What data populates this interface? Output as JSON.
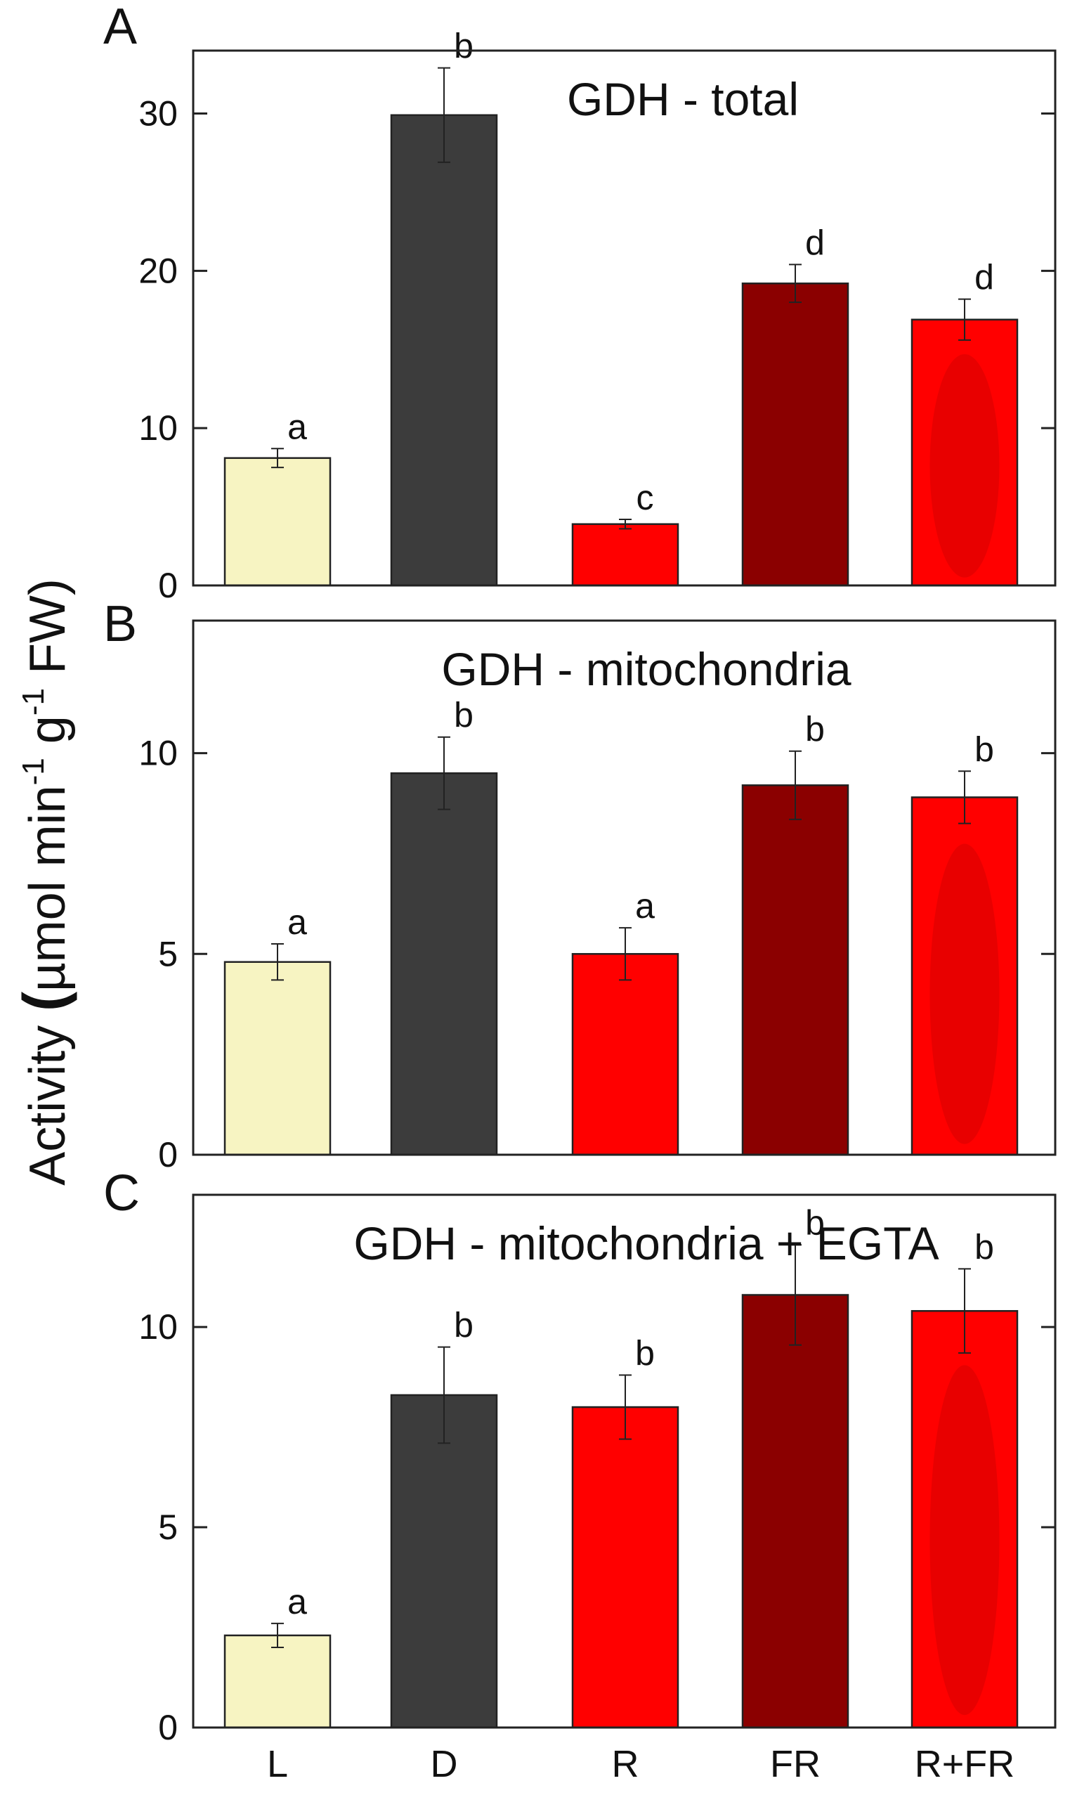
{
  "figure": {
    "ylabel": "Activity (µmol min⁻¹ g⁻¹ FW)",
    "ylabel_parts": {
      "lead": "Activity ",
      "open": "(",
      "unit_a": "µmol min",
      "exp_a": "-1",
      "unit_b": " g",
      "exp_b": "-1",
      "tail": " FW)"
    },
    "categories": [
      "L",
      "D",
      "R",
      "FR",
      "R+FR"
    ]
  },
  "colors": {
    "L": "#f7f4c2",
    "D": "#3c3c3c",
    "R": "#ff0000",
    "FR": "#8b0000",
    "R+FR": "#ff0000",
    "R+FR_inner": "#e00000",
    "frame": "#222222"
  },
  "chart_data": [
    {
      "type": "bar",
      "panel_label": "A",
      "title": "GDH - total",
      "categories": [
        "L",
        "D",
        "R",
        "FR",
        "R+FR"
      ],
      "values": [
        8.1,
        29.9,
        3.9,
        19.2,
        16.9
      ],
      "errors": [
        0.6,
        3.0,
        0.3,
        1.2,
        1.3
      ],
      "letters": [
        "a",
        "b",
        "c",
        "d",
        "d"
      ],
      "ylim": [
        0,
        34
      ],
      "yticks": [
        0,
        10,
        20,
        30
      ]
    },
    {
      "type": "bar",
      "panel_label": "B",
      "title": "GDH - mitochondria",
      "categories": [
        "L",
        "D",
        "R",
        "FR",
        "R+FR"
      ],
      "values": [
        4.8,
        9.5,
        5.0,
        9.2,
        8.9
      ],
      "errors": [
        0.45,
        0.9,
        0.65,
        0.85,
        0.65
      ],
      "letters": [
        "a",
        "b",
        "a",
        "b",
        "b"
      ],
      "ylim": [
        0,
        13.3
      ],
      "yticks": [
        0,
        5,
        10
      ]
    },
    {
      "type": "bar",
      "panel_label": "C",
      "title": "GDH - mitochondria + EGTA",
      "categories": [
        "L",
        "D",
        "R",
        "FR",
        "R+FR"
      ],
      "values": [
        2.3,
        8.3,
        8.0,
        10.8,
        10.4
      ],
      "errors": [
        0.3,
        1.2,
        0.8,
        1.25,
        1.05
      ],
      "letters": [
        "a",
        "b",
        "b",
        "b",
        "b"
      ],
      "ylim": [
        0,
        13.3
      ],
      "yticks": [
        0,
        5,
        10
      ]
    }
  ]
}
